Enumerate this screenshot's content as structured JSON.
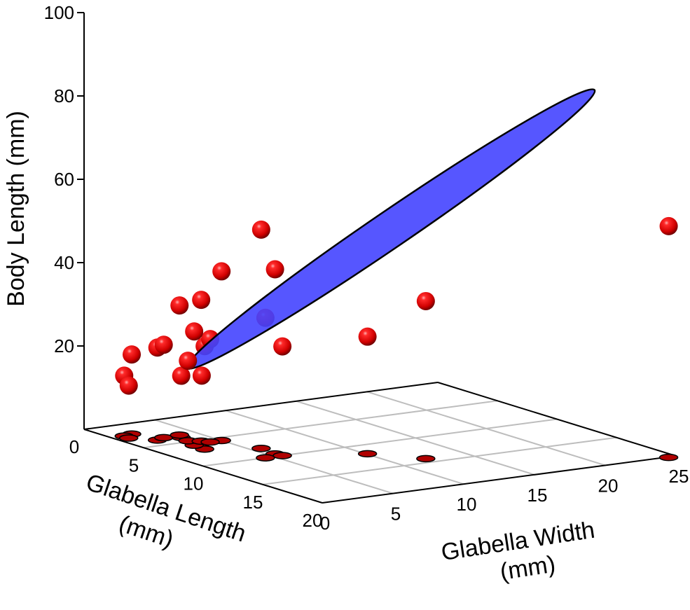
{
  "chart_data": {
    "type": "scatter3d",
    "title": "",
    "xlabel": "Glabella Width (mm)",
    "xlabel_lines": [
      "Glabella Width",
      "(mm)"
    ],
    "ylabel": "Glabella Length (mm)",
    "ylabel_lines": [
      "Glabella Length",
      "(mm)"
    ],
    "zlabel": "Body Length (mm)",
    "xlim": [
      0,
      25
    ],
    "ylim": [
      0,
      20
    ],
    "zlim": [
      0,
      100
    ],
    "x_ticks": [
      "0",
      "5",
      "10",
      "15",
      "20",
      "25"
    ],
    "y_ticks": [
      "0",
      "5",
      "10",
      "15",
      "20"
    ],
    "z_ticks": [
      "20",
      "40",
      "60",
      "80",
      "100"
    ],
    "grid": true,
    "floor_projection": true,
    "point_color": "#e00000",
    "ellipsoid_color": "#4444ff",
    "ellipsoid_outline": "#000000",
    "points": [
      {
        "x": 1.9,
        "y": 3.9,
        "z": 22.2
      },
      {
        "x": 2.6,
        "y": 3.6,
        "z": 22.3
      },
      {
        "x": 1.6,
        "y": 2.1,
        "z": 19.1
      },
      {
        "x": 3.6,
        "y": 5.6,
        "z": 16.2
      },
      {
        "x": 2.8,
        "y": 6.8,
        "z": 24.7
      },
      {
        "x": 0.9,
        "y": 2.3,
        "z": 14.5
      },
      {
        "x": 0.8,
        "y": 2.8,
        "z": 12.6
      },
      {
        "x": 2.9,
        "y": 5.8,
        "z": 27.3
      },
      {
        "x": 3.5,
        "y": 4.0,
        "z": 14.8
      },
      {
        "x": 3.3,
        "y": 4.8,
        "z": 19.2
      },
      {
        "x": 3.9,
        "y": 5.2,
        "z": 33.9
      },
      {
        "x": 3.8,
        "y": 3.5,
        "z": 31.1
      },
      {
        "x": 5.0,
        "y": 5.6,
        "z": 40.6
      },
      {
        "x": 5.7,
        "y": 8.1,
        "z": 52.5
      },
      {
        "x": 5.5,
        "y": 9.5,
        "z": 44.3
      },
      {
        "x": 5.6,
        "y": 10.0,
        "z": 26.2
      },
      {
        "x": 4.2,
        "y": 5.6,
        "z": 24.7
      },
      {
        "x": 4.4,
        "y": 10.0,
        "z": 33.6
      },
      {
        "x": 10.1,
        "y": 11.8,
        "z": 28.1
      },
      {
        "x": 12.2,
        "y": 14.2,
        "z": 37.8
      },
      {
        "x": 24.4,
        "y": 20.1,
        "z": 55.5
      }
    ]
  }
}
